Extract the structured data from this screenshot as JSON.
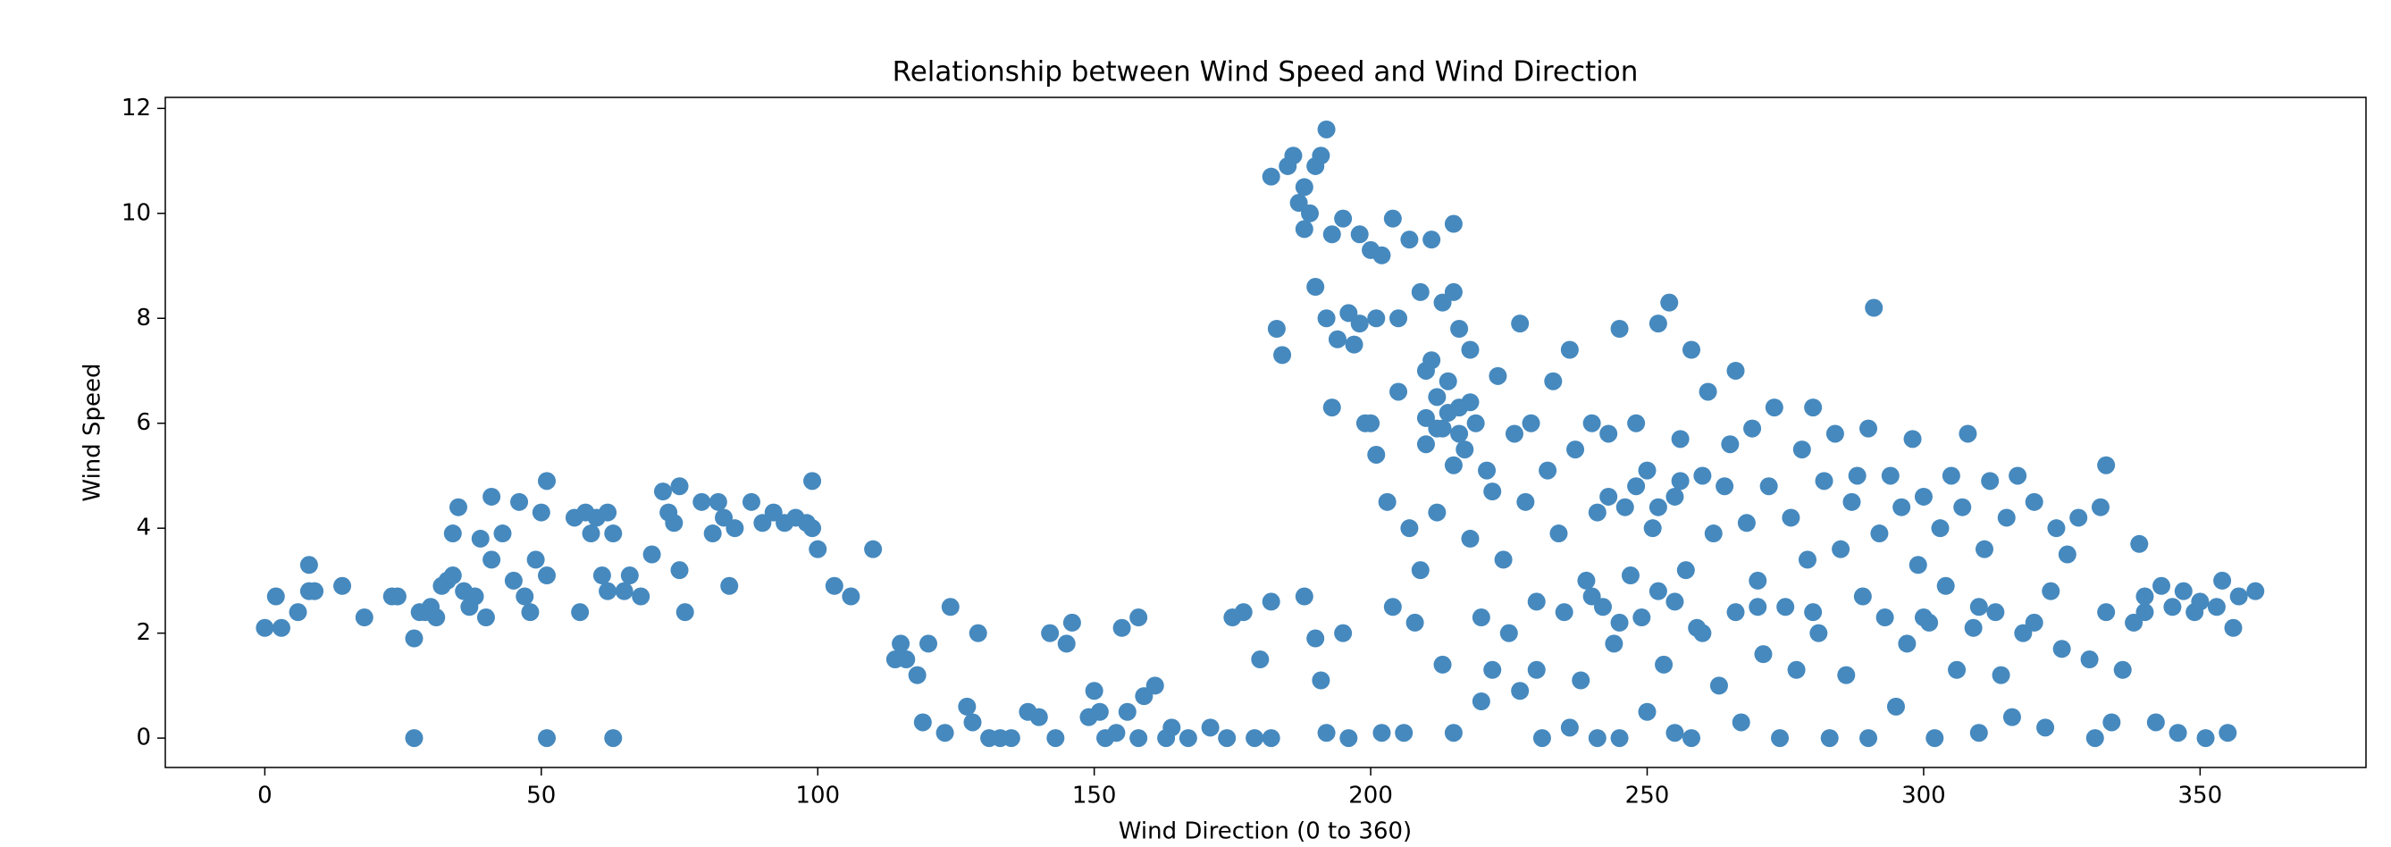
{
  "chart_data": {
    "type": "scatter",
    "title": "Relationship between Wind Speed and Wind Direction",
    "x_label": "Wind Direction (0 to 360)",
    "y_label": "Wind Speed",
    "color": "#4689be",
    "xlim": [
      -18,
      380
    ],
    "ylim": [
      -0.56,
      12.21
    ],
    "xticks": [
      0,
      50,
      100,
      150,
      200,
      250,
      300,
      350
    ],
    "yticks": [
      0,
      2,
      4,
      6,
      8,
      10,
      12
    ],
    "x": [
      0,
      2,
      3,
      6,
      8,
      8,
      9,
      14,
      18,
      23,
      24,
      27,
      27,
      28,
      29,
      30,
      31,
      32,
      33,
      34,
      34,
      35,
      36,
      37,
      38,
      39,
      40,
      41,
      41,
      43,
      45,
      46,
      47,
      48,
      49,
      50,
      51,
      51,
      51,
      56,
      57,
      58,
      59,
      60,
      61,
      62,
      62,
      63,
      63,
      65,
      66,
      68,
      70,
      72,
      73,
      74,
      75,
      75,
      76,
      79,
      81,
      82,
      83,
      84,
      85,
      88,
      90,
      92,
      94,
      96,
      98,
      99,
      99,
      100,
      103,
      106,
      110,
      114,
      115,
      116,
      118,
      119,
      120,
      123,
      124,
      127,
      128,
      129,
      131,
      133,
      135,
      138,
      140,
      142,
      143,
      145,
      146,
      149,
      150,
      151,
      152,
      154,
      155,
      156,
      158,
      158,
      159,
      161,
      163,
      164,
      167,
      171,
      174,
      175,
      177,
      179,
      180,
      182,
      182,
      183,
      184,
      182,
      185,
      186,
      187,
      188,
      188,
      189,
      190,
      191,
      192,
      193,
      190,
      192,
      194,
      195,
      196,
      198,
      200,
      201,
      202,
      204,
      205,
      207,
      209,
      210,
      211,
      213,
      215,
      215,
      216,
      188,
      190,
      191,
      192,
      193,
      195,
      196,
      197,
      198,
      199,
      200,
      201,
      202,
      203,
      204,
      205,
      206,
      207,
      208,
      209,
      210,
      210,
      211,
      212,
      212,
      213,
      213,
      214,
      215,
      215,
      216,
      217,
      218,
      218,
      219,
      220,
      220,
      221,
      222,
      222,
      223,
      224,
      225,
      226,
      227,
      227,
      228,
      229,
      230,
      230,
      231,
      232,
      233,
      234,
      235,
      236,
      236,
      237,
      238,
      239,
      240,
      241,
      241,
      242,
      243,
      244,
      245,
      245,
      246,
      247,
      248,
      249,
      250,
      250,
      251,
      252,
      252,
      253,
      254,
      255,
      255,
      256,
      257,
      258,
      258,
      259,
      260,
      261,
      262,
      263,
      264,
      265,
      266,
      266,
      267,
      268,
      269,
      270,
      271,
      272,
      273,
      274,
      275,
      276,
      277,
      278,
      279,
      280,
      281,
      282,
      283,
      284,
      285,
      286,
      287,
      288,
      289,
      290,
      290,
      291,
      292,
      293,
      294,
      295,
      296,
      297,
      298,
      299,
      300,
      301,
      302,
      303,
      304,
      305,
      306,
      307,
      308,
      309,
      310,
      311,
      312,
      313,
      314,
      315,
      316,
      317,
      318,
      320,
      322,
      323,
      324,
      325,
      326,
      328,
      330,
      331,
      332,
      333,
      333,
      334,
      336,
      338,
      339,
      340,
      342,
      343,
      345,
      346,
      347,
      349,
      350,
      351,
      353,
      354,
      355,
      356,
      357,
      360,
      248,
      252,
      256,
      243,
      214,
      216,
      212,
      218,
      240,
      245,
      255,
      260,
      270,
      280,
      300,
      310,
      320,
      340
    ],
    "y": [
      2.1,
      2.7,
      2.1,
      2.4,
      3.3,
      2.8,
      2.8,
      2.9,
      2.3,
      2.7,
      2.7,
      1.9,
      0,
      2.4,
      2.4,
      2.5,
      2.3,
      2.9,
      3.0,
      3.1,
      3.9,
      4.4,
      2.8,
      2.5,
      2.7,
      3.8,
      2.3,
      4.6,
      3.4,
      3.9,
      3.0,
      4.5,
      2.7,
      2.4,
      3.4,
      4.3,
      4.9,
      3.1,
      0,
      4.2,
      2.4,
      4.3,
      3.9,
      4.2,
      3.1,
      2.8,
      4.3,
      0,
      3.9,
      2.8,
      3.1,
      2.7,
      3.5,
      4.7,
      4.3,
      4.1,
      4.8,
      3.2,
      2.4,
      4.5,
      3.9,
      4.5,
      4.2,
      2.9,
      4.0,
      4.5,
      4.1,
      4.3,
      4.1,
      4.2,
      4.1,
      4.9,
      4.0,
      3.6,
      2.9,
      2.7,
      3.6,
      1.5,
      1.8,
      1.5,
      1.2,
      0.3,
      1.8,
      0.1,
      2.5,
      0.6,
      0.3,
      2.0,
      0,
      0,
      0,
      0.5,
      0.4,
      2.0,
      0,
      1.8,
      2.2,
      0.4,
      0.9,
      0.5,
      0,
      0.1,
      2.1,
      0.5,
      0,
      2.3,
      0.8,
      1.0,
      0,
      0.2,
      0,
      0.2,
      0,
      2.3,
      2.4,
      0,
      1.5,
      0,
      2.6,
      7.8,
      7.3,
      10.7,
      10.9,
      11.1,
      10.2,
      10.5,
      9.7,
      10.0,
      10.9,
      11.1,
      11.6,
      9.6,
      8.6,
      8.0,
      7.6,
      9.9,
      8.1,
      9.6,
      9.3,
      8.0,
      9.2,
      9.9,
      8.0,
      9.5,
      8.5,
      7.0,
      9.5,
      8.3,
      9.8,
      8.5,
      7.8,
      2.7,
      1.9,
      1.1,
      0.1,
      6.3,
      2.0,
      0,
      7.5,
      7.9,
      6.0,
      6.0,
      5.4,
      0.1,
      4.5,
      2.5,
      6.6,
      0.1,
      4.0,
      2.2,
      3.2,
      6.1,
      5.6,
      7.2,
      6.5,
      4.3,
      5.9,
      1.4,
      6.8,
      5.2,
      0.1,
      6.3,
      5.5,
      7.4,
      3.8,
      6.0,
      2.3,
      0.7,
      5.1,
      4.7,
      1.3,
      6.9,
      3.4,
      2.0,
      5.8,
      7.9,
      0.9,
      4.5,
      6.0,
      2.6,
      1.3,
      0,
      5.1,
      6.8,
      3.9,
      2.4,
      7.4,
      0.2,
      5.5,
      1.1,
      3.0,
      6.0,
      4.3,
      0,
      2.5,
      5.8,
      1.8,
      7.8,
      0,
      4.4,
      3.1,
      6.0,
      2.3,
      5.1,
      0.5,
      4.0,
      7.9,
      2.8,
      1.4,
      8.3,
      4.6,
      0.1,
      5.7,
      3.2,
      7.4,
      0,
      2.1,
      5.0,
      6.6,
      3.9,
      1.0,
      4.8,
      5.6,
      7.0,
      2.4,
      0.3,
      4.1,
      5.9,
      3.0,
      1.6,
      4.8,
      6.3,
      0,
      2.5,
      4.2,
      1.3,
      5.5,
      3.4,
      6.3,
      2.0,
      4.9,
      0,
      5.8,
      3.6,
      1.2,
      4.5,
      5.0,
      2.7,
      0,
      5.9,
      8.2,
      3.9,
      2.3,
      5.0,
      0.6,
      4.4,
      1.8,
      5.7,
      3.3,
      4.6,
      2.2,
      0,
      4.0,
      2.9,
      5.0,
      1.3,
      4.4,
      5.8,
      2.1,
      0.1,
      3.6,
      4.9,
      2.4,
      1.2,
      4.2,
      0.4,
      5.0,
      2.0,
      4.5,
      0.2,
      2.8,
      4.0,
      1.7,
      3.5,
      4.2,
      1.5,
      0,
      4.4,
      5.2,
      2.4,
      0.3,
      1.3,
      2.2,
      3.7,
      2.7,
      0.3,
      2.9,
      2.5,
      0.1,
      2.8,
      2.4,
      2.6,
      0,
      2.5,
      3.0,
      0.1,
      2.1,
      2.7,
      2.8,
      4.8,
      4.4,
      4.9,
      4.6,
      6.2,
      5.8,
      5.9,
      6.4,
      2.7,
      2.2,
      2.6,
      2.0,
      2.5,
      2.4,
      2.3,
      2.5,
      2.2,
      2.4
    ]
  }
}
